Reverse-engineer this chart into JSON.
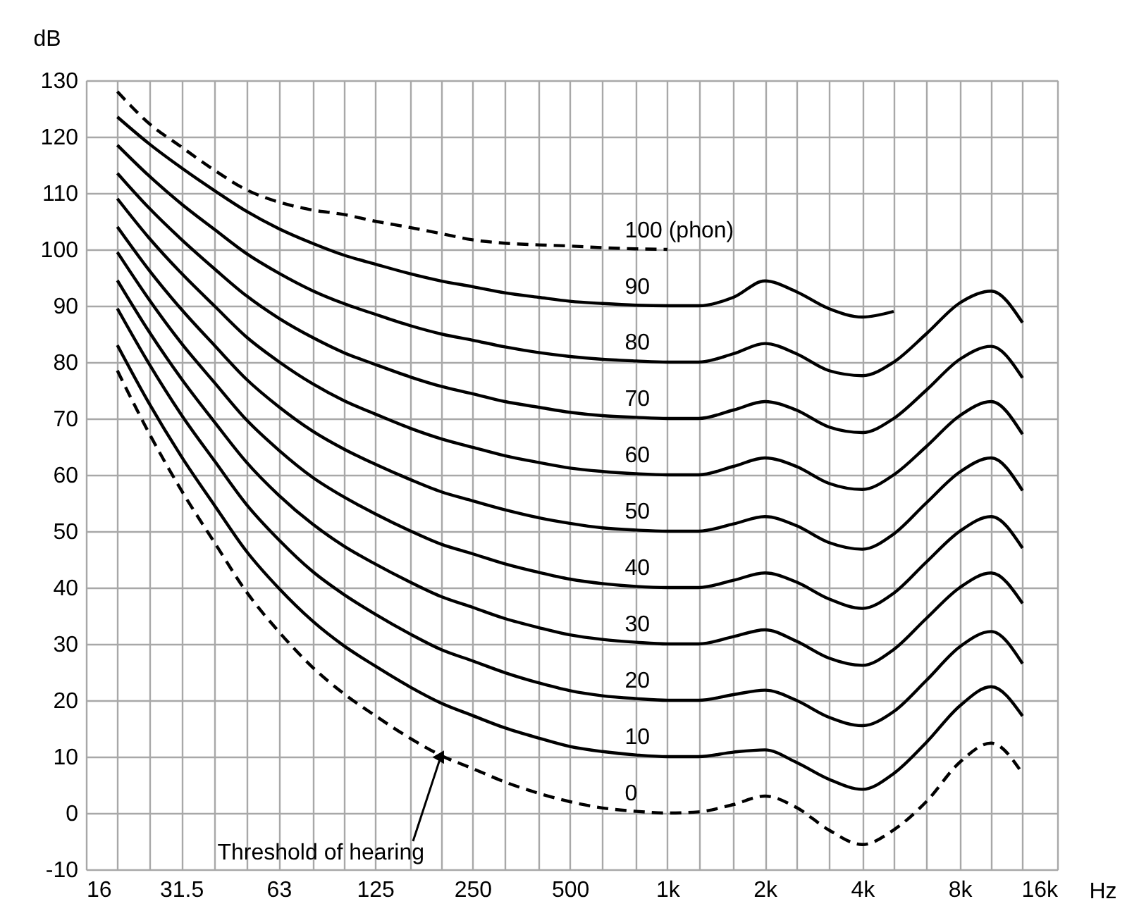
{
  "chart_data": {
    "type": "line",
    "xlabel": "Hz",
    "ylabel": "dB",
    "log": "x",
    "grid": true,
    "legend": false,
    "marker": "none",
    "xlim": [
      16,
      16000
    ],
    "ylim": [
      -10,
      130
    ],
    "xticks": [
      16,
      {
        "value": 20,
        "label": null
      },
      {
        "value": 25,
        "label": null
      },
      31.5,
      {
        "value": 40,
        "label": null
      },
      {
        "value": 50,
        "label": null
      },
      63,
      {
        "value": 80,
        "label": null
      },
      {
        "value": 100,
        "label": null
      },
      125,
      {
        "value": 160,
        "label": null
      },
      {
        "value": 200,
        "label": null
      },
      250,
      {
        "value": 315,
        "label": null
      },
      {
        "value": 400,
        "label": null
      },
      500,
      {
        "value": 630,
        "label": null
      },
      {
        "value": 800,
        "label": null
      },
      {
        "value": 1000,
        "label": "1k"
      },
      {
        "value": 1250,
        "label": null
      },
      {
        "value": 1600,
        "label": null
      },
      {
        "value": 2000,
        "label": "2k"
      },
      {
        "value": 2500,
        "label": null
      },
      {
        "value": 3150,
        "label": null
      },
      {
        "value": 4000,
        "label": "4k"
      },
      {
        "value": 5000,
        "label": null
      },
      {
        "value": 6300,
        "label": null
      },
      {
        "value": 8000,
        "label": "8k"
      },
      {
        "value": 10000,
        "label": null
      },
      {
        "value": 12500,
        "label": null
      },
      {
        "value": 16000,
        "label": "16k"
      }
    ],
    "yticks": [
      -10,
      0,
      10,
      20,
      30,
      40,
      50,
      60,
      70,
      80,
      90,
      100,
      110,
      120,
      130
    ],
    "x": [
      20,
      25,
      31.5,
      40,
      50,
      63,
      80,
      100,
      125,
      160,
      200,
      250,
      315,
      400,
      500,
      630,
      800,
      1000,
      1250,
      1600,
      2000,
      2500,
      3150,
      4000,
      5000,
      6300,
      8000,
      10000,
      12500
    ],
    "series": [
      {
        "name": "100 (phon)",
        "color": "#000000",
        "line_style": "dashed",
        "x": [
          20,
          25,
          31.5,
          40,
          50,
          63,
          80,
          100,
          125,
          160,
          200,
          250,
          315,
          400,
          500,
          630,
          800,
          1000
        ],
        "values": [
          128,
          122.4,
          118.2,
          114,
          110.6,
          108.4,
          107,
          106.2,
          105,
          103.9,
          102.8,
          101.7,
          101.1,
          100.8,
          100.6,
          100.3,
          100.1,
          100
        ]
      },
      {
        "name": "90",
        "color": "#000000",
        "line_style": "solid",
        "x": [
          20,
          25,
          31.5,
          40,
          50,
          63,
          80,
          100,
          125,
          160,
          200,
          250,
          315,
          400,
          500,
          630,
          800,
          1000,
          1250,
          1600,
          2000,
          2500,
          3150,
          4000,
          5000
        ],
        "values": [
          123.5,
          118.8,
          114.5,
          110.4,
          106.8,
          103.7,
          101.1,
          99,
          97.4,
          95.7,
          94.4,
          93.4,
          92.3,
          91.5,
          90.8,
          90.4,
          90.1,
          90,
          90,
          91.5,
          94.4,
          92.5,
          89.5,
          88,
          89
        ]
      },
      {
        "name": "80",
        "color": "#000000",
        "line_style": "solid",
        "values": [
          118.5,
          113.1,
          108.1,
          103.5,
          99.3,
          95.8,
          92.7,
          90.4,
          88.5,
          86.5,
          85,
          83.9,
          82.7,
          81.7,
          81,
          80.5,
          80.2,
          80,
          80,
          81.5,
          83.3,
          81.5,
          78.5,
          77.6,
          80,
          85,
          90.5,
          92.6,
          87
        ]
      },
      {
        "name": "70",
        "color": "#000000",
        "line_style": "solid",
        "values": [
          113.5,
          107.4,
          101.8,
          96.5,
          91.8,
          87.8,
          84.4,
          81.7,
          79.6,
          77.4,
          75.7,
          74.4,
          73,
          72,
          71.1,
          70.5,
          70.2,
          70,
          70,
          71.5,
          73,
          71.5,
          68.5,
          67.5,
          70,
          75,
          80.5,
          82.8,
          77.2
        ]
      },
      {
        "name": "60",
        "color": "#000000",
        "line_style": "solid",
        "values": [
          109,
          102.1,
          95.8,
          89.9,
          84.5,
          80.1,
          76.2,
          73.2,
          70.8,
          68.3,
          66.4,
          64.9,
          63.4,
          62.2,
          61.2,
          60.6,
          60.2,
          60,
          60,
          61.5,
          63,
          61.5,
          58.5,
          57.4,
          60,
          65,
          70.5,
          73,
          67.2
        ]
      },
      {
        "name": "50",
        "color": "#000000",
        "line_style": "solid",
        "values": [
          104,
          96.4,
          89.4,
          82.9,
          77,
          72.1,
          67.8,
          64.6,
          61.9,
          59.2,
          57,
          55.4,
          53.8,
          52.4,
          51.4,
          50.6,
          50.2,
          50,
          50,
          51.3,
          52.6,
          51,
          48,
          46.8,
          49.5,
          55,
          60.5,
          63,
          57.2
        ]
      },
      {
        "name": "40",
        "color": "#000000",
        "line_style": "solid",
        "values": [
          99.5,
          91.2,
          83.4,
          76.3,
          69.8,
          64.4,
          59.6,
          56.1,
          53.1,
          50.1,
          47.7,
          46,
          44.2,
          42.7,
          41.5,
          40.7,
          40.2,
          40,
          40,
          41.3,
          42.6,
          41,
          38,
          36.3,
          39,
          44.5,
          50,
          52.6,
          47
        ]
      },
      {
        "name": "30",
        "color": "#000000",
        "line_style": "solid",
        "values": [
          94.5,
          85.5,
          77.1,
          69.3,
          62.3,
          56.4,
          51.3,
          47.4,
          44.2,
          41,
          38.4,
          36.5,
          34.5,
          32.9,
          31.6,
          30.8,
          30.3,
          30,
          30,
          31.3,
          32.5,
          30.5,
          27.5,
          26.2,
          29,
          34.5,
          40,
          42.6,
          37.2
        ]
      },
      {
        "name": "20",
        "color": "#000000",
        "line_style": "solid",
        "values": [
          89.5,
          79.8,
          70.7,
          62.4,
          54.8,
          48.5,
          42.9,
          38.8,
          35.3,
          31.8,
          29,
          27,
          24.9,
          23.1,
          21.7,
          20.8,
          20.3,
          20,
          20,
          21,
          21.8,
          20,
          17,
          15.5,
          18,
          23.5,
          29.5,
          32.2,
          26.5
        ]
      },
      {
        "name": "10",
        "color": "#000000",
        "line_style": "solid",
        "values": [
          83,
          72.8,
          63.3,
          54.5,
          46.5,
          39.9,
          34.1,
          29.7,
          26.1,
          22.4,
          19.5,
          17.3,
          15.1,
          13.3,
          11.8,
          10.9,
          10.3,
          10,
          10,
          10.8,
          11.2,
          9,
          6,
          4.2,
          7,
          12.5,
          19,
          22.4,
          17.2
        ]
      },
      {
        "name": "0",
        "color": "#000000",
        "line_style": "dashed",
        "values": [
          78.5,
          67.5,
          57.3,
          47.9,
          39.3,
          32.2,
          25.9,
          21.2,
          17.3,
          13.3,
          10.2,
          7.9,
          5.5,
          3.5,
          2,
          0.9,
          0.3,
          0,
          0.2,
          1.5,
          3,
          1,
          -3,
          -5.6,
          -3,
          2,
          9,
          12.4,
          7
        ]
      }
    ],
    "annotations": [
      {
        "text": "Threshold of hearing",
        "x": 200,
        "y": 10.2
      }
    ]
  }
}
